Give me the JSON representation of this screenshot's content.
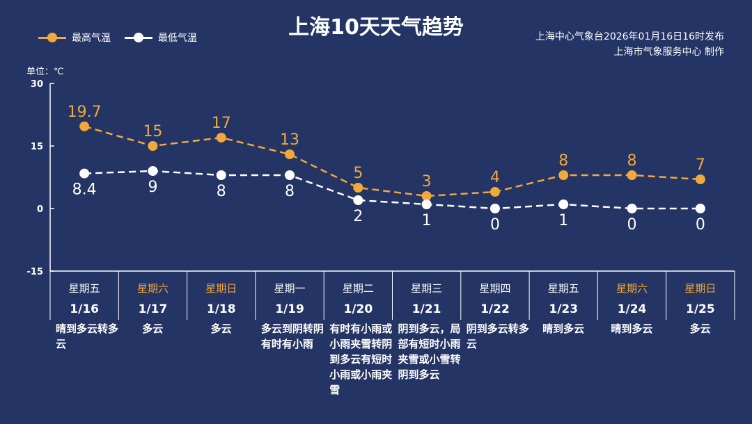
{
  "title": "上海10天天气趋势",
  "publisher": {
    "line1": "上海中心气象台2026年01月16日16时发布",
    "line2": "上海市气象服务中心  制作"
  },
  "colors": {
    "background": "#243464",
    "high": "#f2a93b",
    "low": "#ffffff",
    "weekend": "#f2a93b"
  },
  "chart_data": {
    "type": "line",
    "unit_label": "单位：℃",
    "ylim": [
      -15,
      30
    ],
    "yticks": [
      30,
      15,
      0,
      -15
    ],
    "categories": [
      "1/16",
      "1/17",
      "1/18",
      "1/19",
      "1/20",
      "1/21",
      "1/22",
      "1/23",
      "1/24",
      "1/25"
    ],
    "weekdays": [
      "星期五",
      "星期六",
      "星期日",
      "星期一",
      "星期二",
      "星期三",
      "星期四",
      "星期五",
      "星期六",
      "星期日"
    ],
    "weekend": [
      false,
      true,
      true,
      false,
      false,
      false,
      false,
      false,
      true,
      true
    ],
    "descriptions": [
      "晴到多云转多云",
      "多云",
      "多云",
      "多云到阴转阴有时有小雨",
      "有时有小雨或小雨夹雪转阴到多云有短时小雨或小雨夹雪",
      "阴到多云，局部有短时小雨夹雪或小雪转阴到多云",
      "阴到多云转多云",
      "晴到多云",
      "晴到多云",
      "多云"
    ],
    "series": [
      {
        "name": "最高气温",
        "values": [
          19.7,
          15,
          17,
          13,
          5,
          3,
          4,
          8,
          8,
          7
        ]
      },
      {
        "name": "最低气温",
        "values": [
          8.4,
          9,
          8,
          8,
          2,
          1,
          0,
          1,
          0,
          0
        ]
      }
    ]
  }
}
